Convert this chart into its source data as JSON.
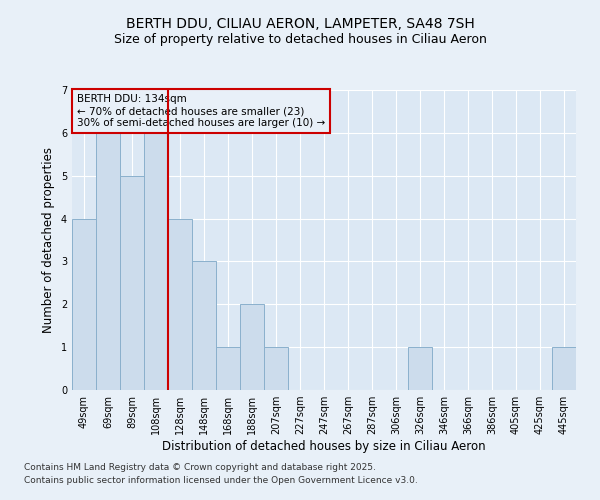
{
  "title_line1": "BERTH DDU, CILIAU AERON, LAMPETER, SA48 7SH",
  "title_line2": "Size of property relative to detached houses in Ciliau Aeron",
  "xlabel": "Distribution of detached houses by size in Ciliau Aeron",
  "ylabel": "Number of detached properties",
  "categories": [
    "49sqm",
    "69sqm",
    "89sqm",
    "108sqm",
    "128sqm",
    "148sqm",
    "168sqm",
    "188sqm",
    "207sqm",
    "227sqm",
    "247sqm",
    "267sqm",
    "287sqm",
    "306sqm",
    "326sqm",
    "346sqm",
    "366sqm",
    "386sqm",
    "405sqm",
    "425sqm",
    "445sqm"
  ],
  "values": [
    4,
    6,
    5,
    6,
    4,
    3,
    1,
    2,
    1,
    0,
    0,
    0,
    0,
    0,
    1,
    0,
    0,
    0,
    0,
    0,
    1
  ],
  "bar_color": "#ccdcec",
  "bar_edge_color": "#8ab0cc",
  "vline_color": "#cc0000",
  "vline_x": 4.5,
  "annotation_text": "BERTH DDU: 134sqm\n← 70% of detached houses are smaller (23)\n30% of semi-detached houses are larger (10) →",
  "annotation_box_edgecolor": "#cc0000",
  "ylim": [
    0,
    7
  ],
  "yticks": [
    0,
    1,
    2,
    3,
    4,
    5,
    6,
    7
  ],
  "bg_color": "#e8f0f8",
  "plot_bg_color": "#dce8f4",
  "footer_line1": "Contains HM Land Registry data © Crown copyright and database right 2025.",
  "footer_line2": "Contains public sector information licensed under the Open Government Licence v3.0.",
  "title_fontsize": 10,
  "subtitle_fontsize": 9,
  "axis_label_fontsize": 8.5,
  "tick_fontsize": 7,
  "annotation_fontsize": 7.5,
  "footer_fontsize": 6.5
}
